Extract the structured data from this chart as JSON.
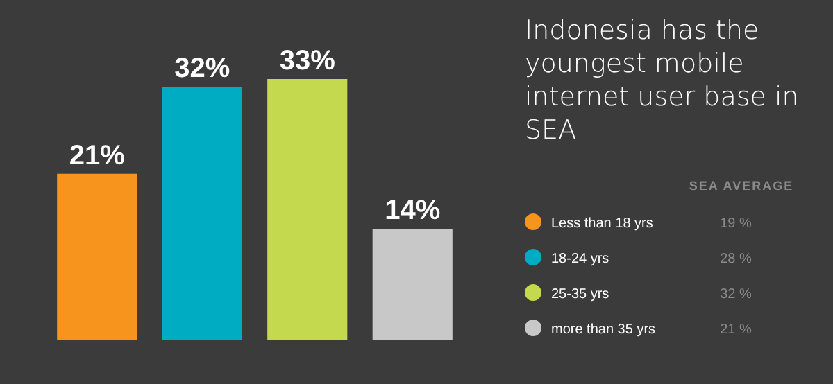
{
  "chart_data": {
    "type": "bar",
    "title": "Indonesia has the youngest mobile internet user base in SEA",
    "categories": [
      null,
      null,
      null,
      null
    ],
    "series": [
      {
        "name": "Less than 18 yrs",
        "color": "#f7941d",
        "values": [
          21,
          null,
          null,
          null
        ],
        "value_labels": [
          "21%",
          null,
          null,
          null
        ]
      },
      {
        "name": "18-24 yrs",
        "color": "#00acc1",
        "values": [
          null,
          32,
          null,
          null
        ],
        "value_labels": [
          null,
          "32%",
          null,
          null
        ]
      },
      {
        "name": "25-35 yrs",
        "color": "#c5d94e",
        "values": [
          null,
          null,
          33,
          null
        ],
        "value_labels": [
          null,
          null,
          "33%",
          null
        ]
      },
      {
        "name": "more than 35 yrs",
        "color": "#c8c8c8",
        "values": [
          null,
          null,
          null,
          14
        ],
        "value_labels": [
          null,
          null,
          null,
          "14%"
        ]
      }
    ],
    "stacked": true,
    "legend": "right",
    "annotations": [
      "SEA AVERAGE",
      "19 %",
      "28 %",
      "32 %",
      "21 %"
    ]
  }
}
